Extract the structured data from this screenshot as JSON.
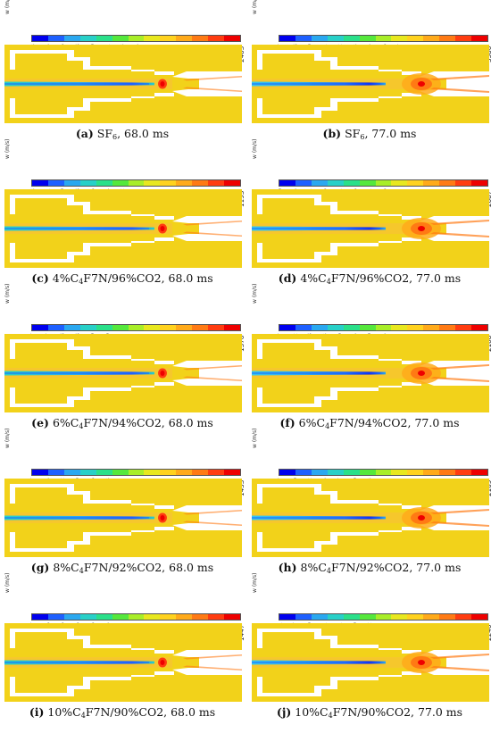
{
  "legend_label": "w (m/s)",
  "colorbar_colors": [
    "#0000ee",
    "#1e60ff",
    "#2aa8f0",
    "#28d0c8",
    "#2ae08a",
    "#55e83c",
    "#a8ee28",
    "#e8e81e",
    "#ffd21e",
    "#ffaa1a",
    "#ff7a14",
    "#ff3c10",
    "#ee0000"
  ],
  "field_colors": {
    "outer": "#f2d21a",
    "bg": "#ffffff",
    "axis_warm": "#f6c72c"
  },
  "panels": [
    {
      "id": "a",
      "ticks": [
        "-4433",
        "-3945",
        "-3456",
        "-2968",
        "-2480",
        "-1991",
        "-1503",
        "-1015",
        "-526",
        "-38",
        "451",
        "939",
        "1428",
        "1916",
        "2405"
      ],
      "cap_letter": "(a)",
      "cap_gas": "SF",
      "cap_sub": "6",
      "cap_rest": "",
      "cap_time": ", 68.0 ms",
      "t77": false
    },
    {
      "id": "b",
      "ticks": [
        "-8437",
        "-7578",
        "-6720",
        "-5861",
        "-5002",
        "-4143",
        "-3285",
        "-2426",
        "-1567",
        "-708",
        "151",
        "1009",
        "1668",
        "2727",
        "3586"
      ],
      "cap_letter": "(b)",
      "cap_gas": "SF",
      "cap_sub": "6",
      "cap_rest": "",
      "cap_time": ", 77.0 ms",
      "t77": true
    },
    {
      "id": "c",
      "ticks": [
        "-2753",
        "-2471",
        "-2190",
        "-1908",
        "-1626",
        "-1344",
        "-1062",
        "-780",
        "-500",
        "-216",
        "65",
        "347",
        "629",
        "911",
        "1193"
      ],
      "cap_letter": "(c)",
      "cap_gas": "4%C",
      "cap_sub": "4",
      "cap_rest": "F7N/96%CO2",
      "cap_time": ", 68.0 ms",
      "t77": false
    },
    {
      "id": "d",
      "ticks": [
        "-4140",
        "-3695",
        "-3251",
        "-2806",
        "-2361",
        "-1916",
        "-1471",
        "-1026",
        "-582",
        "-137",
        "308",
        "753",
        "1197",
        "1643",
        "2087"
      ],
      "cap_letter": "(d)",
      "cap_gas": "4%C",
      "cap_sub": "4",
      "cap_rest": "F7N/96%CO2",
      "cap_time": ", 77.0 ms",
      "t77": true
    },
    {
      "id": "e",
      "ticks": [
        "-2537",
        "-2257",
        "-1978",
        "-1698",
        "-1420",
        "-1139",
        "-860",
        "-580",
        "-301",
        "-21",
        "258",
        "538",
        "817",
        "1097",
        "1376"
      ],
      "cap_letter": "(e)",
      "cap_gas": "6%C",
      "cap_sub": "4",
      "cap_rest": "F7N/94%CO2",
      "cap_time": ", 68.0 ms",
      "t77": false
    },
    {
      "id": "f",
      "ticks": [
        "-4117",
        "-3672",
        "-3228",
        "-2783",
        "-2339",
        "-1895",
        "-1450",
        "-1005",
        "-560",
        "-115",
        "329",
        "775",
        "1219",
        "1663",
        "2108"
      ],
      "cap_letter": "(f)",
      "cap_gas": "6%C",
      "cap_sub": "4",
      "cap_rest": "F7N/94%CO2",
      "cap_time": ", 77.0 ms",
      "t77": true
    },
    {
      "id": "g",
      "ticks": [
        "-2667",
        "-2375",
        "-2082",
        "-1789",
        "-1496",
        "-1203",
        "-910",
        "-617",
        "-325",
        "-32",
        "261",
        "553",
        "847",
        "1140",
        "1433"
      ],
      "cap_letter": "(g)",
      "cap_gas": "8%C",
      "cap_sub": "4",
      "cap_rest": "F7N/92%CO2",
      "cap_time": ", 68.0 ms",
      "t77": false
    },
    {
      "id": "h",
      "ticks": [
        "-4097",
        "-3650",
        "-3202",
        "-2755",
        "-2307",
        "-1859",
        "-1413",
        "-965",
        "-516",
        "-69",
        "379",
        "826",
        "1275",
        "1722",
        "2169"
      ],
      "cap_letter": "(h)",
      "cap_gas": "8%C",
      "cap_sub": "4",
      "cap_rest": "F7N/92%CO2",
      "cap_time": ", 77.0 ms",
      "t77": true
    },
    {
      "id": "i",
      "ticks": [
        "-2757",
        "-2456",
        "-2156",
        "-1856",
        "-1556",
        "-1255",
        "-956",
        "-655",
        "-355",
        "-53",
        "246",
        "546",
        "847",
        "1147",
        "1447"
      ],
      "cap_letter": "(i)",
      "cap_gas": "10%C",
      "cap_sub": "4",
      "cap_rest": "F7N/90%CO2",
      "cap_time": ", 68.0 ms",
      "t77": false
    },
    {
      "id": "j",
      "ticks": [
        "-4081",
        "-3647",
        "-3119",
        "-2751",
        "-2301",
        "-1809",
        "-1402",
        "-963",
        "-503",
        "-96",
        "382",
        "859",
        "1347",
        "1804",
        "2246"
      ],
      "cap_letter": "(j)",
      "cap_gas": "10%C",
      "cap_sub": "4",
      "cap_rest": "F7N/90%CO2",
      "cap_time": ", 77.0 ms",
      "t77": true
    }
  ]
}
